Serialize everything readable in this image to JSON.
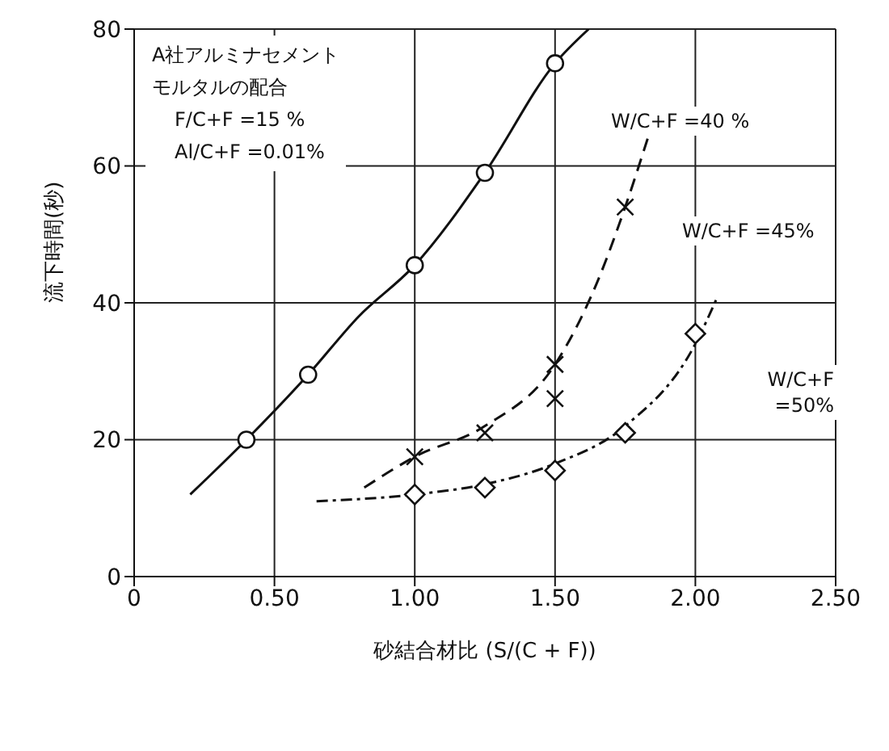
{
  "chart_data": {
    "type": "scatter",
    "xlabel": "砂結合材比 (S/(C + F))",
    "ylabel": "流下時間(秒)",
    "xlim": [
      0,
      2.5
    ],
    "ylim": [
      0,
      80
    ],
    "xticks": [
      0,
      {
        "value": 0.5,
        "label": "0.50"
      },
      {
        "value": 1,
        "label": "1.00"
      },
      {
        "value": 1.5,
        "label": "1.50"
      },
      {
        "value": 2,
        "label": "2.00"
      },
      {
        "value": 2.5,
        "label": "2.50"
      }
    ],
    "yticks": [
      0,
      20,
      40,
      60,
      80
    ],
    "grid": true,
    "legend": false,
    "series": [
      {
        "type": "line",
        "color": "#111111",
        "line_style": "solid",
        "marker": "none",
        "x": [
          0.2,
          0.4,
          0.62,
          0.8,
          1.0,
          1.25,
          1.5,
          1.62
        ],
        "values": [
          12,
          20,
          29.5,
          38,
          45.5,
          59,
          75,
          80
        ]
      },
      {
        "type": "line",
        "color": "#111111",
        "line_style": "dashed",
        "marker": "none",
        "x": [
          0.82,
          1.0,
          1.25,
          1.5,
          1.65,
          1.75,
          1.83
        ],
        "values": [
          13,
          17.5,
          22,
          31,
          43,
          54,
          64
        ]
      },
      {
        "type": "line",
        "color": "#111111",
        "line_style": "dotted",
        "marker": "none",
        "x": [
          0.65,
          1.0,
          1.25,
          1.5,
          1.75,
          2.0,
          2.08
        ],
        "values": [
          11,
          12,
          13.5,
          16.5,
          22,
          34,
          41
        ]
      },
      {
        "color": "#111111",
        "marker": "circle",
        "x": [
          0.4,
          0.62,
          1.0,
          1.25,
          1.5
        ],
        "values": [
          20,
          29.5,
          45.5,
          59,
          75
        ]
      },
      {
        "color": "#111111",
        "marker": "cross",
        "x": [
          1.0,
          1.25,
          1.5,
          1.5,
          1.75
        ],
        "values": [
          17.5,
          21,
          31,
          26,
          54
        ]
      },
      {
        "color": "#111111",
        "marker": "diamond",
        "x": [
          1.0,
          1.25,
          1.5,
          1.75,
          2.0
        ],
        "values": [
          12,
          13,
          15.5,
          21,
          35.5
        ]
      }
    ],
    "annotations": [
      "A社アルミナセメント",
      "モルタルの配合",
      "F/C+F =15 %",
      "Al/C+F =0.01%",
      "W/C+F =40 %",
      "W/C+F =45%",
      "W/C+F =50%"
    ]
  }
}
